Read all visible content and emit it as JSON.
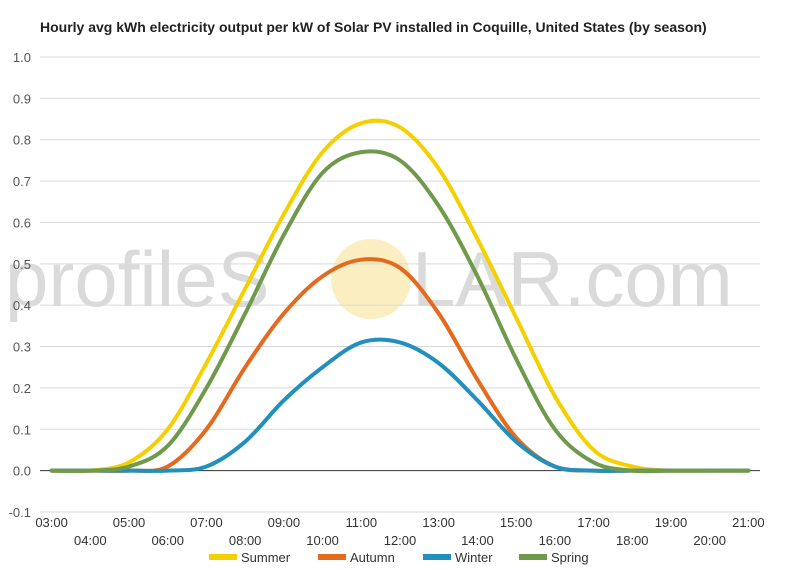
{
  "chart_data": {
    "type": "line",
    "title": "Hourly avg kWh electricity output per kW of Solar PV installed in Coquille, United States (by season)",
    "watermark": {
      "left": "profileS",
      "right": "LAR.com"
    },
    "xlabel": "",
    "ylabel": "",
    "ylim": [
      -0.1,
      1.0
    ],
    "yticks": [
      "1.0",
      "0.9",
      "0.8",
      "0.7",
      "0.6",
      "0.5",
      "0.4",
      "0.3",
      "0.2",
      "0.1",
      "0.0",
      "-0.1"
    ],
    "x_upper": [
      "03:00",
      "05:00",
      "07:00",
      "09:00",
      "11:00",
      "13:00",
      "15:00",
      "17:00",
      "19:00",
      "21:00"
    ],
    "x_lower": [
      "04:00",
      "06:00",
      "08:00",
      "10:00",
      "12:00",
      "14:00",
      "16:00",
      "18:00",
      "20:00"
    ],
    "x_hours": [
      3,
      4,
      5,
      6,
      7,
      8,
      9,
      10,
      11,
      12,
      13,
      14,
      15,
      16,
      17,
      18,
      19,
      20,
      21
    ],
    "grid": true,
    "legend_position": "bottom",
    "series": [
      {
        "name": "Summer",
        "color": "#f5d000",
        "values": [
          0,
          0,
          0.02,
          0.1,
          0.26,
          0.44,
          0.62,
          0.77,
          0.84,
          0.83,
          0.73,
          0.56,
          0.37,
          0.18,
          0.05,
          0.01,
          0,
          0,
          0
        ]
      },
      {
        "name": "Autumn",
        "color": "#e46a1e",
        "values": [
          0,
          0,
          0,
          0.01,
          0.1,
          0.25,
          0.38,
          0.47,
          0.51,
          0.49,
          0.38,
          0.22,
          0.08,
          0.01,
          0,
          0,
          0,
          0,
          0
        ]
      },
      {
        "name": "Winter",
        "color": "#2190bd",
        "values": [
          0,
          0,
          0,
          0,
          0.01,
          0.07,
          0.17,
          0.25,
          0.31,
          0.31,
          0.26,
          0.17,
          0.07,
          0.01,
          0,
          0,
          0,
          0,
          0
        ]
      },
      {
        "name": "Spring",
        "color": "#6f9a4c",
        "values": [
          0,
          0,
          0.01,
          0.06,
          0.2,
          0.38,
          0.57,
          0.72,
          0.77,
          0.75,
          0.64,
          0.47,
          0.27,
          0.1,
          0.02,
          0,
          0,
          0,
          0
        ]
      }
    ]
  }
}
